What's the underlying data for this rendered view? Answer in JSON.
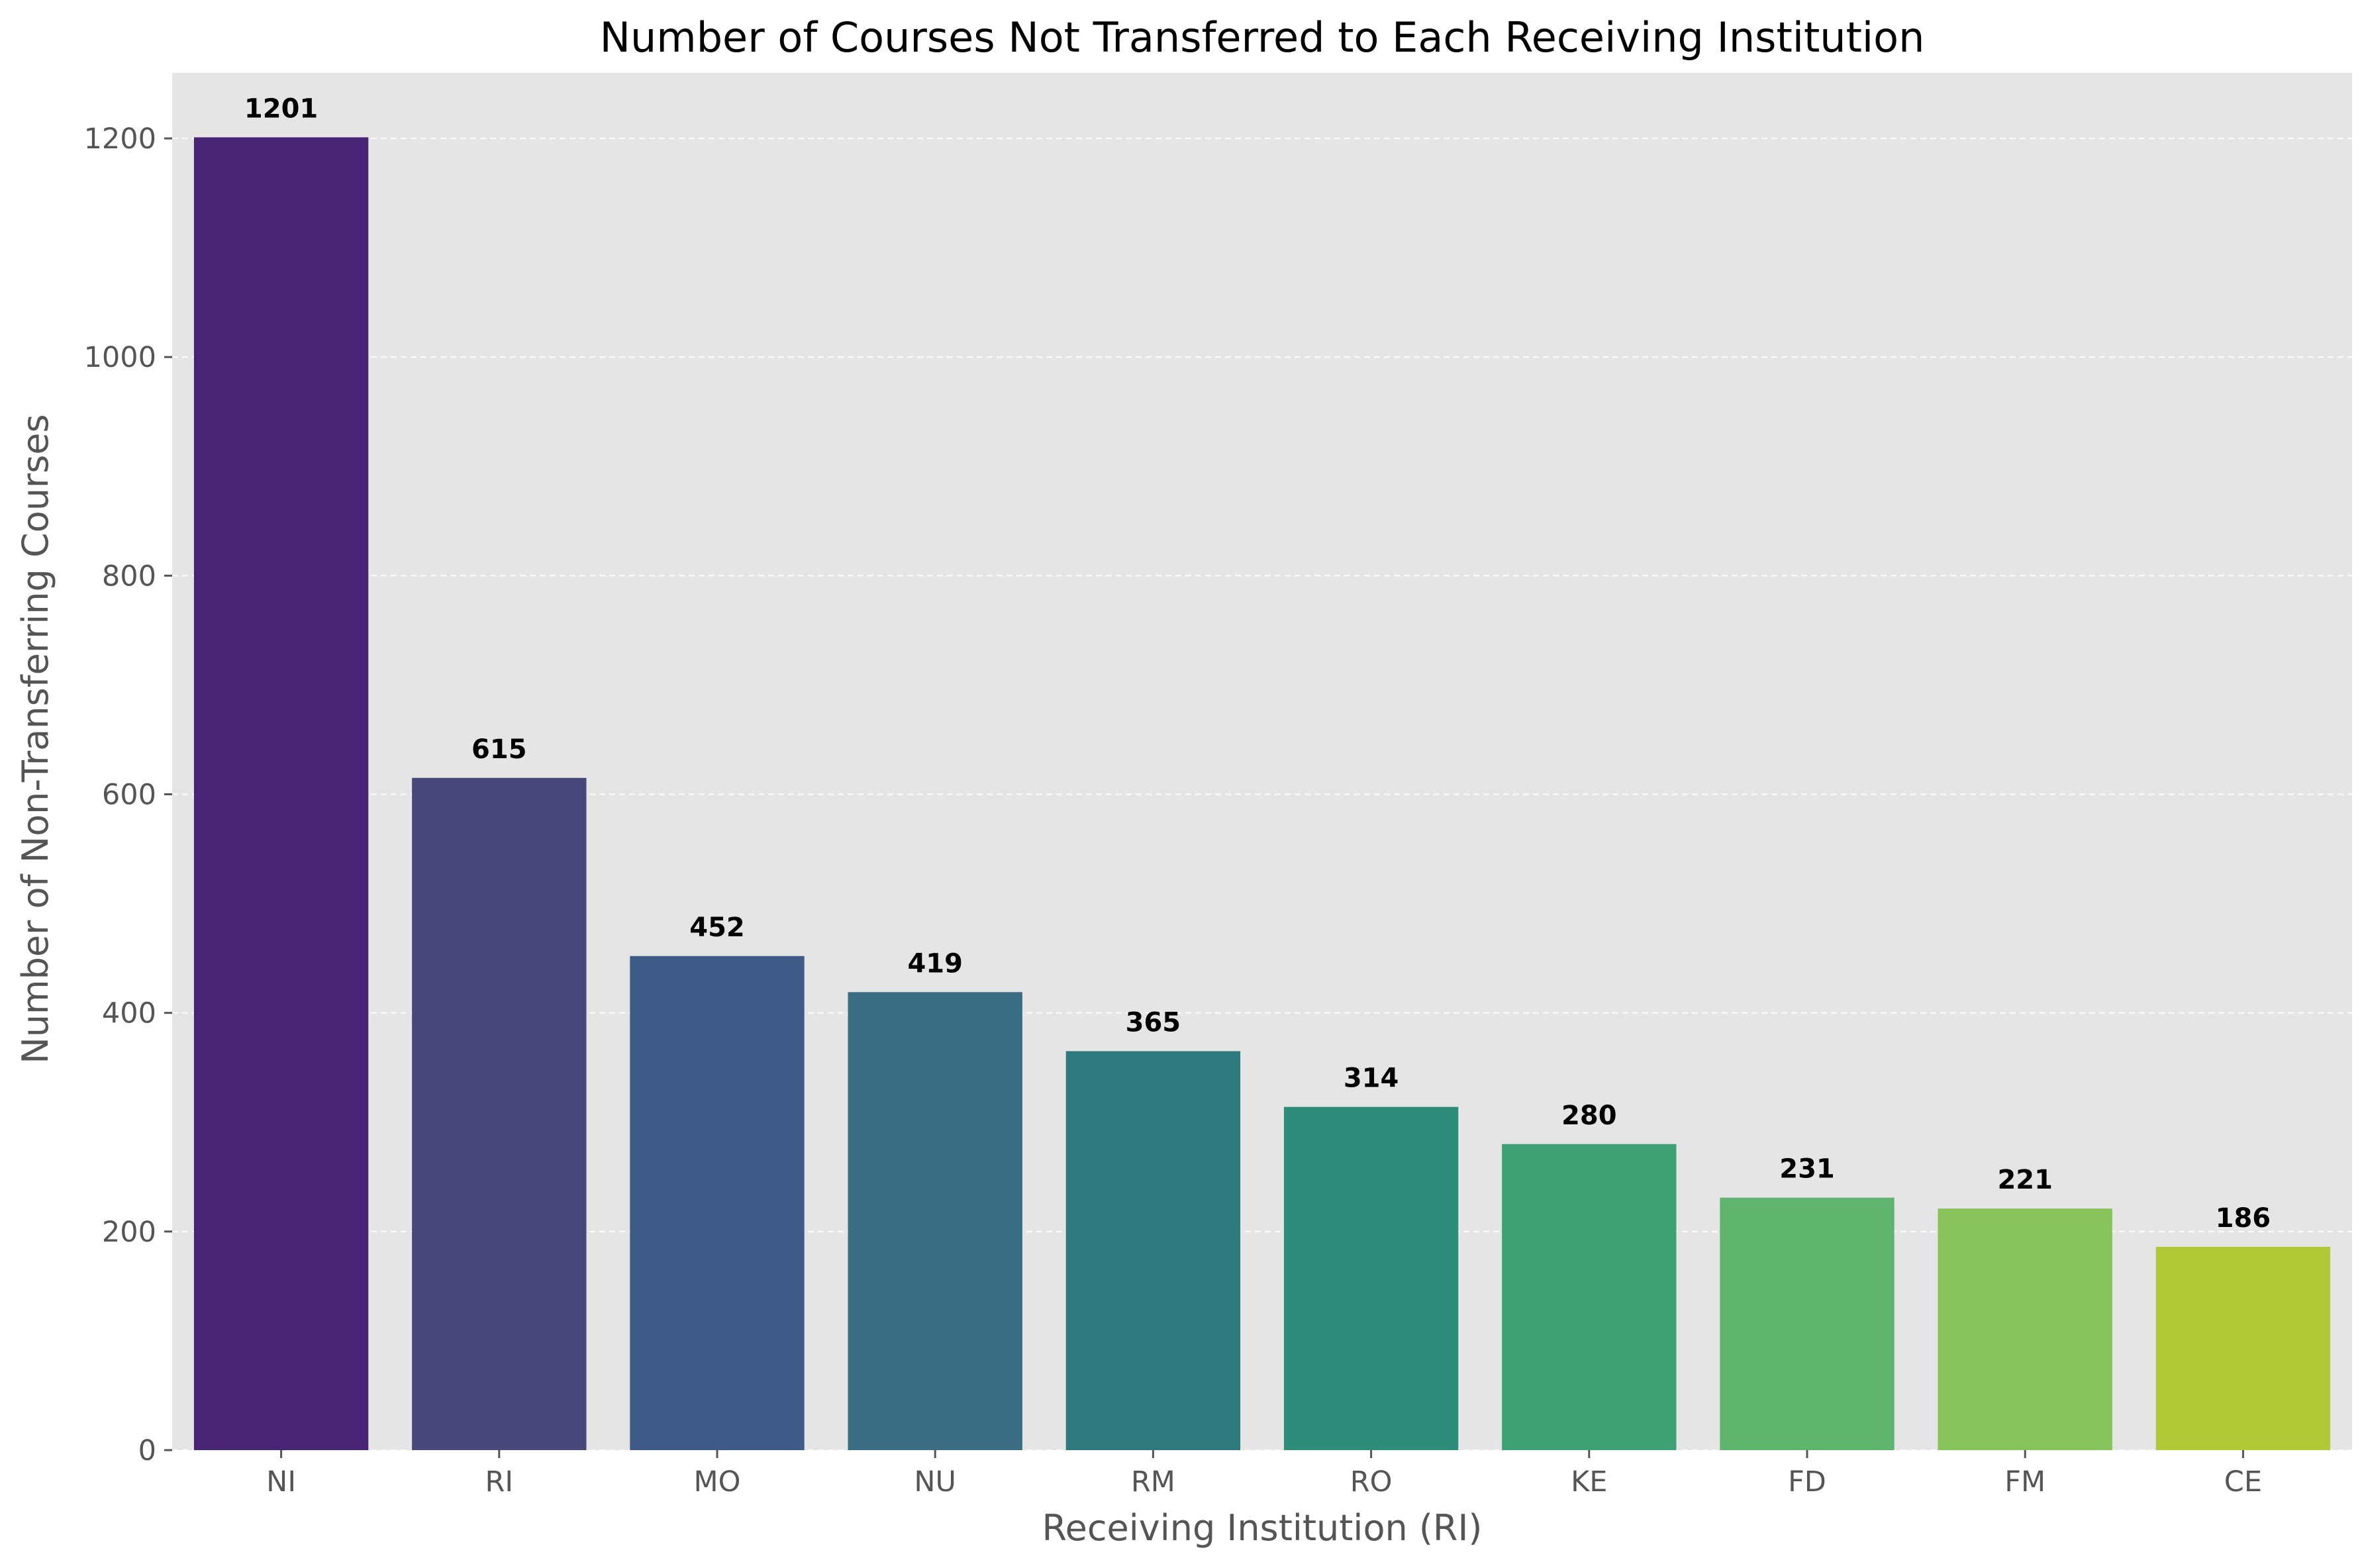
{
  "chart_data": {
    "type": "bar",
    "title": "Number of Courses Not Transferred to Each Receiving Institution",
    "xlabel": "Receiving Institution (RI)",
    "ylabel": "Number of Non-Transferring Courses",
    "categories": [
      "NI",
      "RI",
      "MO",
      "NU",
      "RM",
      "RO",
      "KE",
      "FD",
      "FM",
      "CE"
    ],
    "values": [
      1201,
      615,
      452,
      419,
      365,
      314,
      280,
      231,
      221,
      186
    ],
    "data_labels": [
      "1201",
      "615",
      "452",
      "419",
      "365",
      "314",
      "280",
      "231",
      "221",
      "186"
    ],
    "colors": [
      "#482475",
      "#47477a",
      "#3f5a87",
      "#3a6d82",
      "#2f7a7e",
      "#2e8c7b",
      "#3fa276",
      "#60b56e",
      "#88c25a",
      "#b1c837"
    ],
    "ylim": [
      0,
      1260
    ],
    "yticks": [
      0,
      200,
      400,
      600,
      800,
      1000,
      1200
    ],
    "ytick_labels": [
      "0",
      "200",
      "400",
      "600",
      "800",
      "1000",
      "1200"
    ],
    "grid": "y-axis dashed",
    "background": "#e5e5e5"
  }
}
